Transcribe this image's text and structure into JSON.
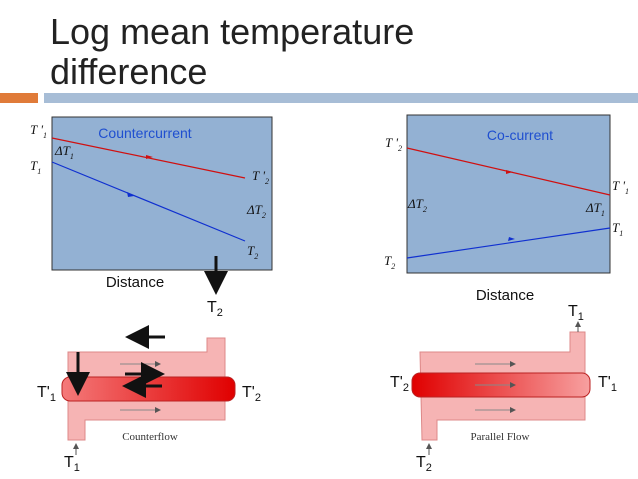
{
  "header": {
    "title_lines": [
      "Log mean temperature",
      "difference"
    ]
  },
  "countercurrent_chart": {
    "label": "Countercurrent",
    "axis_label": "Distance",
    "labels": [
      {
        "symbol": "T '",
        "sub": "1"
      },
      {
        "symbol": "T",
        "sub": "1"
      },
      {
        "symbol": "ΔT",
        "sub": "1"
      },
      {
        "symbol": "T '",
        "sub": "2"
      },
      {
        "symbol": "ΔT",
        "sub": "2"
      },
      {
        "symbol": "T",
        "sub": "2"
      }
    ]
  },
  "cocurrent_chart": {
    "label": "Co-current",
    "axis_label": "Distance",
    "labels": [
      {
        "symbol": "T '",
        "sub": "2"
      },
      {
        "symbol": "ΔT",
        "sub": "2"
      },
      {
        "symbol": "ΔT",
        "sub": "1"
      },
      {
        "symbol": "T '",
        "sub": "1"
      },
      {
        "symbol": "T",
        "sub": "1"
      },
      {
        "symbol": "T",
        "sub": "2"
      }
    ]
  },
  "counterflow_diagram": {
    "caption": "Counterflow",
    "labels": [
      {
        "symbol": "T",
        "sub": "2"
      },
      {
        "symbol": "T'",
        "sub": "1"
      },
      {
        "symbol": "T'",
        "sub": "2"
      },
      {
        "symbol": "T",
        "sub": "1"
      }
    ]
  },
  "parallel_diagram": {
    "caption": "Parallel Flow",
    "labels": [
      {
        "symbol": "T",
        "sub": "1"
      },
      {
        "symbol": "T'",
        "sub": "2"
      },
      {
        "symbol": "T'",
        "sub": "1"
      },
      {
        "symbol": "T",
        "sub": "2"
      }
    ]
  }
}
